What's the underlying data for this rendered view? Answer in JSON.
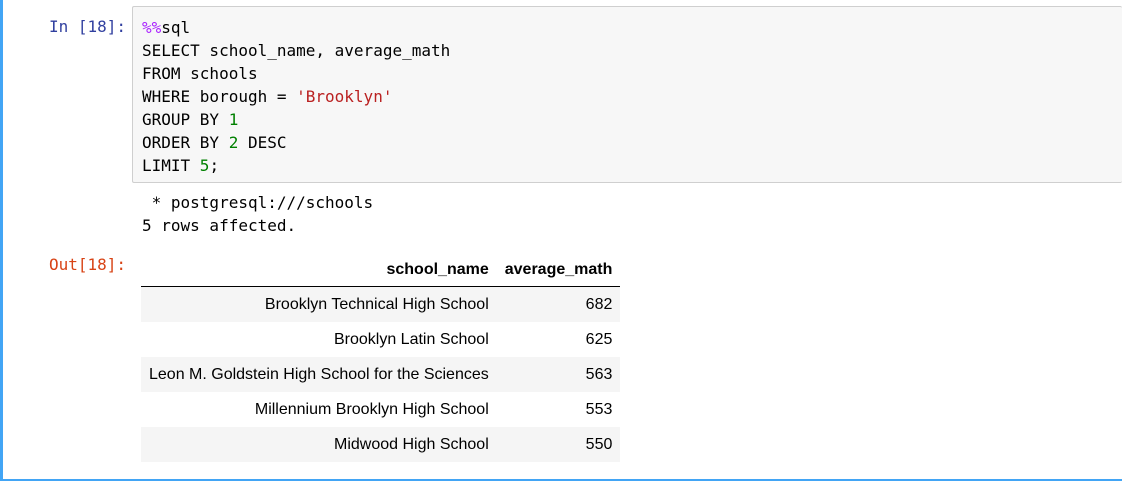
{
  "input_cell": {
    "prompt": "In [18]:",
    "code": {
      "magic": "%%",
      "magic_name": "sql",
      "line2": "SELECT school_name, average_math",
      "line3": "FROM schools",
      "line4_prefix": "WHERE borough = ",
      "line4_string": "'Brooklyn'",
      "line5_prefix": "GROUP BY ",
      "line5_num": "1",
      "line6_prefix": "ORDER BY ",
      "line6_num": "2",
      "line6_suffix": " DESC",
      "line7_prefix": "LIMIT ",
      "line7_num": "5",
      "line7_suffix": ";"
    }
  },
  "stdout": {
    "connection": " * postgresql:///schools",
    "rows_affected": "5 rows affected."
  },
  "output_cell": {
    "prompt": "Out[18]:",
    "table": {
      "columns": [
        "school_name",
        "average_math"
      ],
      "rows": [
        [
          "Brooklyn Technical High School",
          "682"
        ],
        [
          "Brooklyn Latin School",
          "625"
        ],
        [
          "Leon M. Goldstein High School for the Sciences",
          "563"
        ],
        [
          "Millennium Brooklyn High School",
          "553"
        ],
        [
          "Midwood High School",
          "550"
        ]
      ]
    }
  },
  "colors": {
    "cell_selected_border": "#42a5f5",
    "in_prompt": "#303f9f",
    "out_prompt": "#d84315",
    "magic": "#aa22ff",
    "string": "#ba2121",
    "number": "#008000"
  }
}
